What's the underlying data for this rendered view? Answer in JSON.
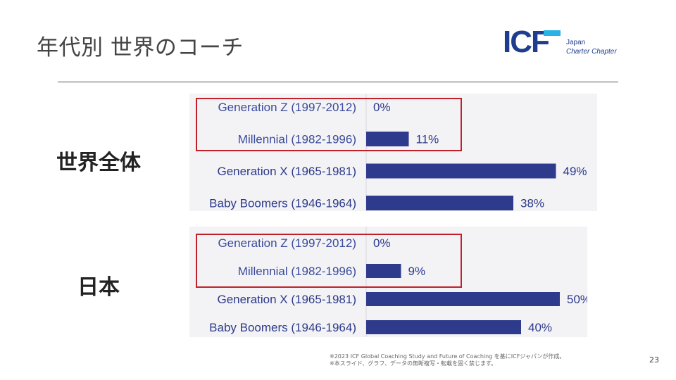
{
  "slide": {
    "title": "年代別 世界のコーチ",
    "page_number": "23",
    "footnote_1": "※2023 ICF Global Coaching Study and Future of Coaching を基にICFジャパンが作成。",
    "footnote_2": "※本スライド、グラフ、データの無断複写・転載を固く禁じます。"
  },
  "logo": {
    "mark_i": "I",
    "mark_c": "C",
    "mark_f": "F",
    "line1": "Japan",
    "line2": "Charter Chapter",
    "colors": {
      "navy": "#1f3d8f",
      "cyan": "#27b3e6"
    }
  },
  "sections": {
    "world_label": "世界全体",
    "japan_label": "日本"
  },
  "colors": {
    "bar": "#2e3a8c",
    "highlight": "#c0202a"
  },
  "chart_data": [
    {
      "type": "bar",
      "orientation": "horizontal",
      "categories": [
        "Generation Z (1997-2012)",
        "Millennial (1982-1996)",
        "Generation X (1965-1981)",
        "Baby Boomers (1946-1964)"
      ],
      "values": [
        0,
        11,
        49,
        38
      ],
      "value_labels": [
        "0%",
        "11%",
        "49%",
        "38%"
      ],
      "xlim": [
        0,
        60
      ],
      "grid": false,
      "legend": "none"
    },
    {
      "type": "bar",
      "orientation": "horizontal",
      "categories": [
        "Generation Z (1997-2012)",
        "Millennial (1982-1996)",
        "Generation X (1965-1981)",
        "Baby Boomers (1946-1964)"
      ],
      "values": [
        0,
        9,
        50,
        40
      ],
      "value_labels": [
        "0%",
        "9%",
        "50%",
        "40%"
      ],
      "xlim": [
        0,
        60
      ],
      "grid": false,
      "legend": "none"
    }
  ]
}
